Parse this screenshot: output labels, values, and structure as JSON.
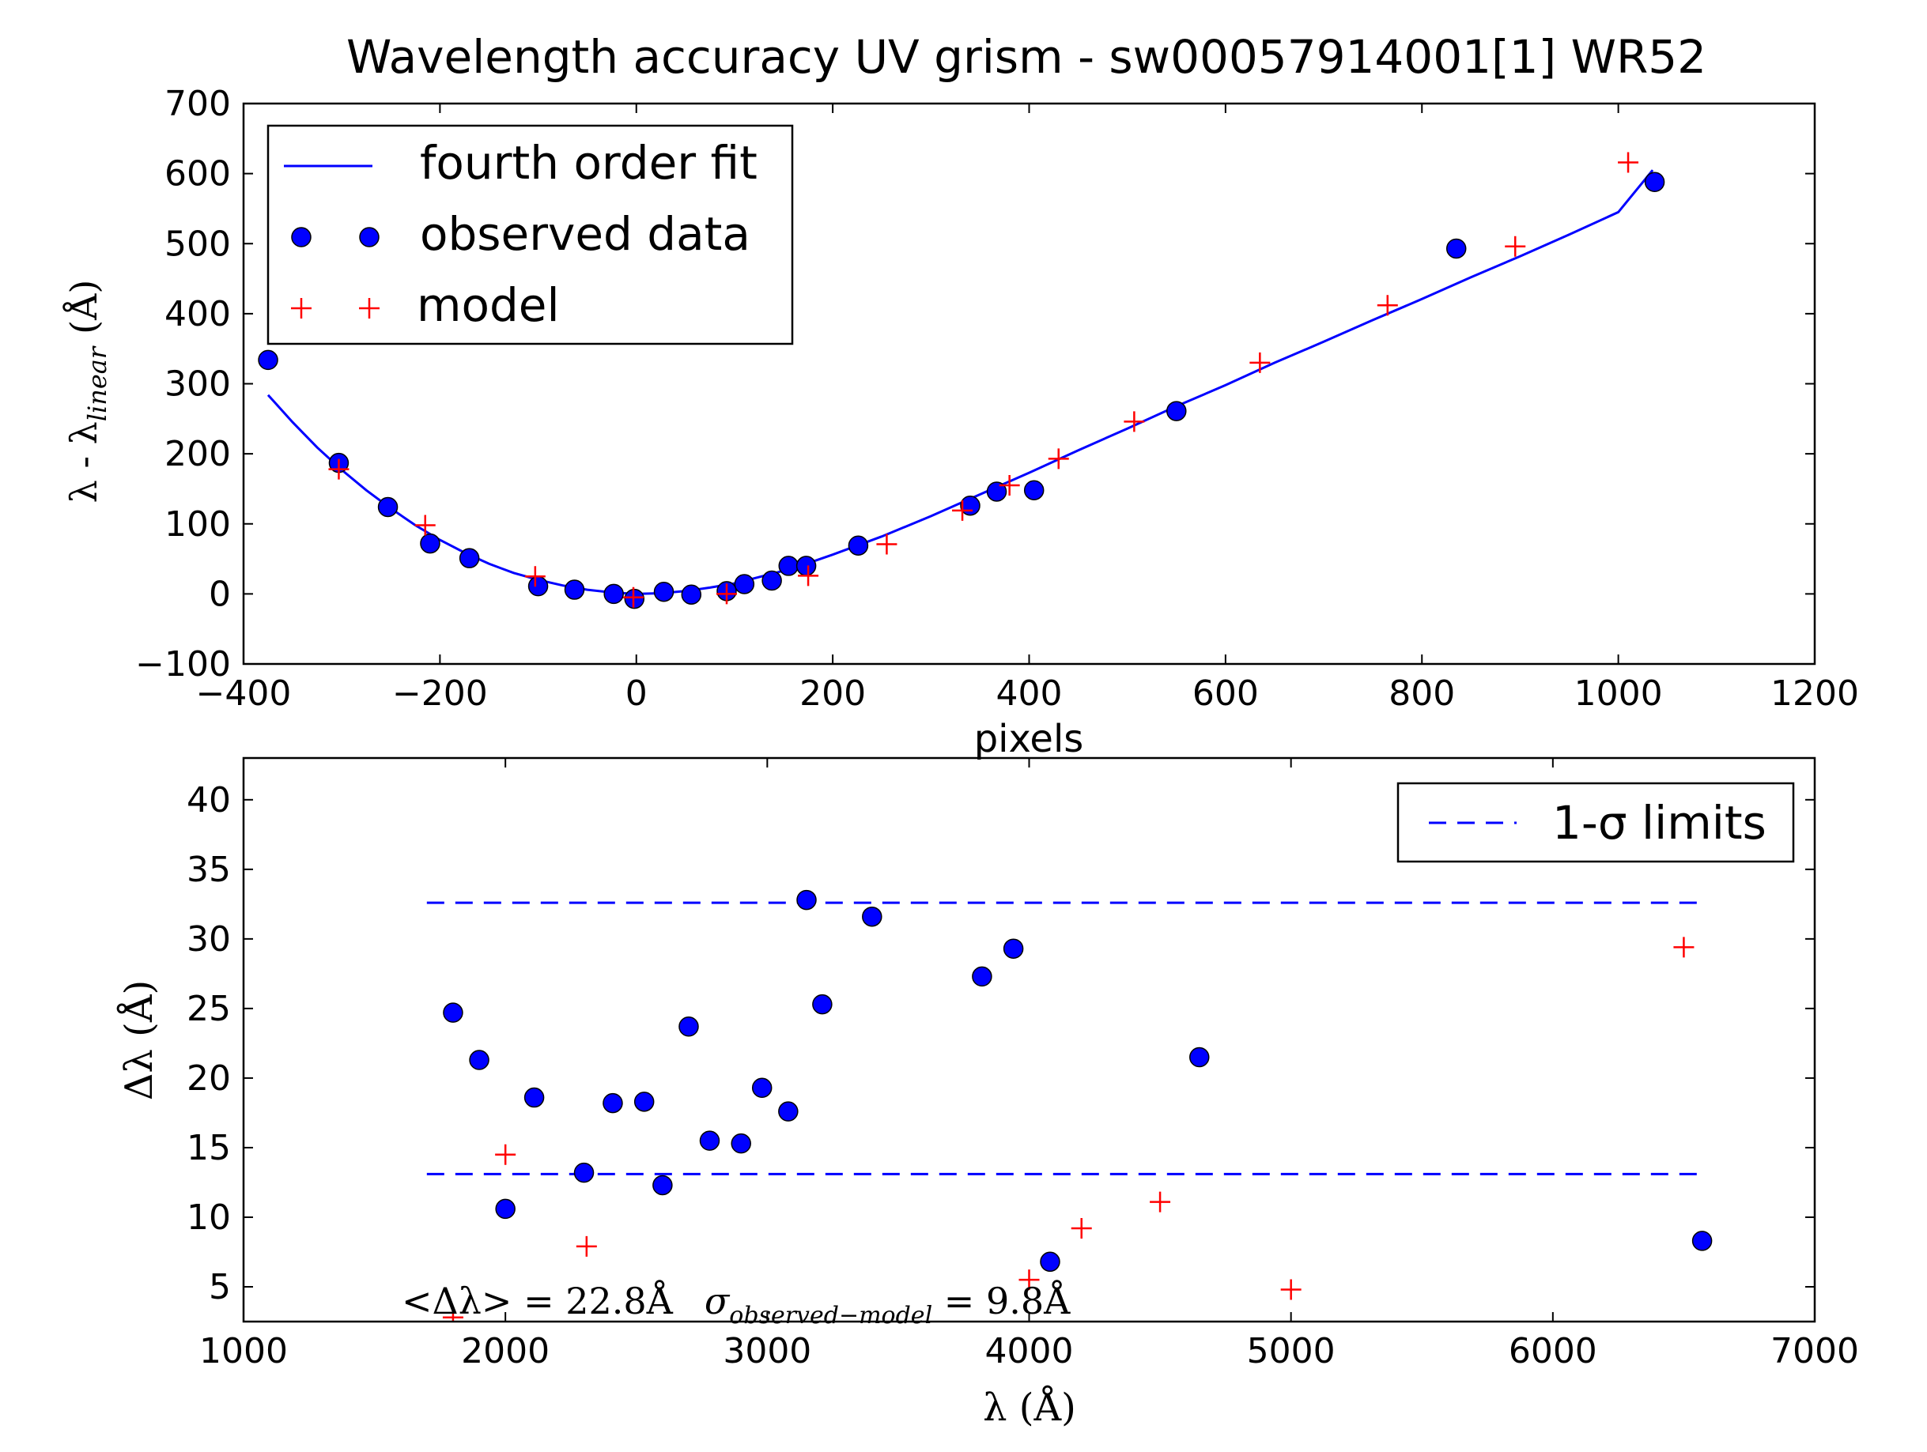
{
  "chart_data": [
    {
      "type": "scatter",
      "title": "Wavelength accuracy UV grism - sw00057914001[1] WR52",
      "xlabel": "pixels",
      "ylabel": "λ - λ",
      "ylabel_subscript": "linear",
      "ylabel_unit": "(Å)",
      "xlim": [
        -400,
        1200
      ],
      "ylim": [
        -100,
        700
      ],
      "xticks": [
        -400,
        -200,
        0,
        200,
        400,
        600,
        800,
        1000,
        1200
      ],
      "xtick_labels": [
        "−400",
        "−200",
        "0",
        "200",
        "400",
        "600",
        "800",
        "1000",
        "1200"
      ],
      "yticks": [
        -100,
        0,
        100,
        200,
        300,
        400,
        500,
        600,
        700
      ],
      "ytick_labels": [
        "−100",
        "0",
        "100",
        "200",
        "300",
        "400",
        "500",
        "600",
        "700"
      ],
      "legend": {
        "placement": "top-left",
        "entries": [
          "fourth order fit",
          "observed data",
          "model"
        ]
      },
      "colors": {
        "fit": "#0000ff",
        "observed": "#0000ff",
        "model": "#ff0000"
      },
      "series": [
        {
          "name": "fourth order fit",
          "kind": "line",
          "x": [
            -375,
            -350,
            -325,
            -300,
            -275,
            -250,
            -225,
            -200,
            -175,
            -150,
            -125,
            -100,
            -75,
            -50,
            -25,
            0,
            25,
            50,
            75,
            100,
            125,
            150,
            175,
            200,
            250,
            300,
            350,
            400,
            450,
            500,
            550,
            600,
            650,
            700,
            750,
            800,
            850,
            900,
            950,
            1000,
            1035
          ],
          "y": [
            284,
            245,
            209,
            177,
            148,
            122,
            98,
            77,
            59,
            43,
            30,
            20,
            12,
            6,
            2,
            0,
            1,
            4,
            9,
            15,
            24,
            33,
            44,
            56,
            82,
            111,
            142,
            173,
            205,
            236,
            268,
            298,
            330,
            360,
            391,
            421,
            452,
            482,
            513,
            545,
            605
          ]
        },
        {
          "name": "observed data",
          "kind": "points",
          "x": [
            -375,
            -303,
            -253,
            -210,
            -170,
            -100,
            -63,
            -23,
            -2,
            28,
            56,
            92,
            110,
            138,
            155,
            173,
            226,
            340,
            367,
            405,
            550,
            835,
            1037
          ],
          "y": [
            334,
            187,
            124,
            72,
            51,
            11,
            6,
            0,
            -7,
            3,
            -1,
            4,
            14,
            19,
            40,
            40,
            69,
            126,
            146,
            148,
            261,
            493,
            588
          ]
        },
        {
          "name": "model",
          "kind": "points",
          "x": [
            -303,
            -215,
            -103,
            -3,
            92,
            175,
            255,
            332,
            380,
            430,
            507,
            635,
            765,
            895,
            1010
          ],
          "y": [
            178,
            98,
            25,
            -5,
            0,
            26,
            71,
            119,
            155,
            193,
            246,
            330,
            412,
            496,
            616
          ]
        }
      ]
    },
    {
      "type": "scatter",
      "xlabel": "λ (Å)",
      "ylabel": "Δλ (Å)",
      "xlim": [
        1000,
        7000
      ],
      "ylim": [
        2.5,
        43
      ],
      "xticks": [
        1000,
        2000,
        3000,
        4000,
        5000,
        6000,
        7000
      ],
      "xtick_labels": [
        "1000",
        "2000",
        "3000",
        "4000",
        "5000",
        "6000",
        "7000"
      ],
      "yticks": [
        5,
        10,
        15,
        20,
        25,
        30,
        35,
        40
      ],
      "ytick_labels": [
        "5",
        "10",
        "15",
        "20",
        "25",
        "30",
        "35",
        "40"
      ],
      "legend": {
        "placement": "top-right",
        "entries": [
          "1-σ limits"
        ]
      },
      "annotation": {
        "mean_part": "<Δλ> = 22.8Å",
        "sigma_symbol": "σ",
        "sigma_subscript": "observed−model",
        "sigma_part": " = 9.8Å"
      },
      "colors": {
        "limits": "#0000ff",
        "observed": "#0000ff",
        "model": "#ff0000"
      },
      "limits": {
        "x": [
          1700,
          6580
        ],
        "upper": 32.6,
        "lower": 13.1
      },
      "series": [
        {
          "name": "observed data",
          "kind": "points",
          "x": [
            1800,
            1900,
            2000,
            2110,
            2300,
            2410,
            2530,
            2600,
            2700,
            2780,
            2900,
            2980,
            3080,
            3150,
            3210,
            3400,
            3820,
            3940,
            4080,
            4650,
            6570
          ],
          "y": [
            24.7,
            21.3,
            10.6,
            18.6,
            13.2,
            18.2,
            18.3,
            12.3,
            23.7,
            15.5,
            15.3,
            19.3,
            17.6,
            32.8,
            25.3,
            31.6,
            27.3,
            29.3,
            6.8,
            21.5,
            8.3
          ]
        },
        {
          "name": "model",
          "kind": "points",
          "x": [
            1800,
            2000,
            2310,
            4000,
            4200,
            4500,
            5000,
            6500
          ],
          "y": [
            2.8,
            14.5,
            7.9,
            5.5,
            9.2,
            11.1,
            4.8,
            29.4
          ]
        }
      ]
    }
  ]
}
